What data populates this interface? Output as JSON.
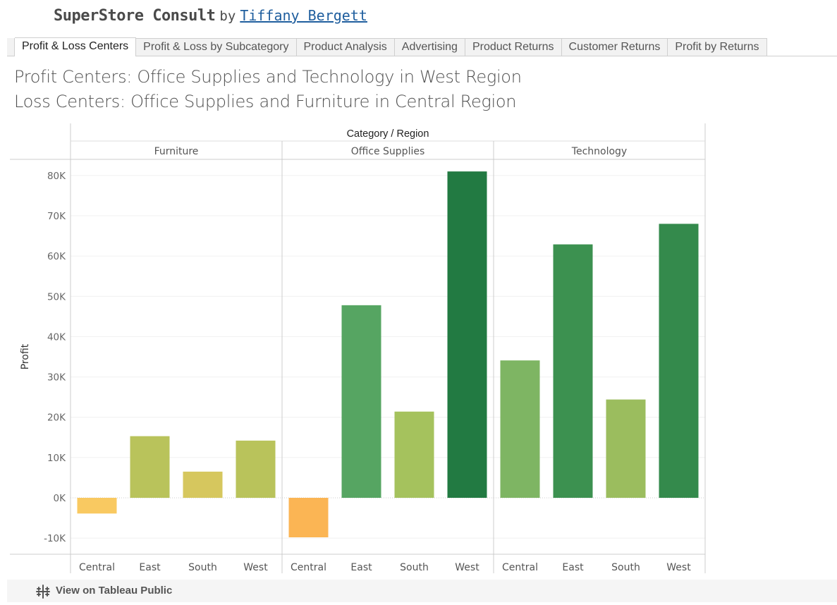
{
  "header": {
    "brand": "SuperStore Consult",
    "by": "by",
    "author": "Tiffany Bergett"
  },
  "tabs": [
    {
      "label": "Profit & Loss Centers",
      "active": true
    },
    {
      "label": "Profit & Loss by Subcategory",
      "active": false
    },
    {
      "label": "Product Analysis",
      "active": false
    },
    {
      "label": "Advertising",
      "active": false
    },
    {
      "label": "Product Returns",
      "active": false
    },
    {
      "label": "Customer Returns",
      "active": false
    },
    {
      "label": "Profit by Returns",
      "active": false
    }
  ],
  "headline": {
    "line1": "Profit Centers: Office Supplies and Technology in West Region",
    "line2": "Loss Centers: Office Supplies and Furniture in Central Region"
  },
  "chart_data": {
    "type": "bar",
    "title": "",
    "column_header": "Category / Region",
    "ylabel": "Profit",
    "ylim": [
      -14000,
      84000
    ],
    "yticks": [
      -10000,
      0,
      10000,
      20000,
      30000,
      40000,
      50000,
      60000,
      70000,
      80000
    ],
    "ytick_labels": [
      "-10K",
      "0K",
      "10K",
      "20K",
      "30K",
      "40K",
      "50K",
      "60K",
      "70K",
      "80K"
    ],
    "grid": true,
    "groups": [
      {
        "name": "Furniture",
        "regions": [
          "Central",
          "East",
          "South",
          "West"
        ],
        "values": [
          -3900,
          15300,
          6500,
          14200
        ],
        "colors": [
          "#f9c961",
          "#b9c35b",
          "#d6c75e",
          "#b9c35b"
        ]
      },
      {
        "name": "Office Supplies",
        "regions": [
          "Central",
          "East",
          "South",
          "West"
        ],
        "values": [
          -9800,
          47800,
          21400,
          81000
        ],
        "colors": [
          "#fbb554",
          "#56a562",
          "#a5c25d",
          "#227a42"
        ]
      },
      {
        "name": "Technology",
        "regions": [
          "Central",
          "East",
          "South",
          "West"
        ],
        "values": [
          34100,
          62900,
          24400,
          68000
        ],
        "colors": [
          "#7eb563",
          "#3c9150",
          "#9bbd5e",
          "#348a4c"
        ]
      }
    ]
  },
  "footer": {
    "label": "View on Tableau Public",
    "icon": "tableau-logo-icon"
  }
}
